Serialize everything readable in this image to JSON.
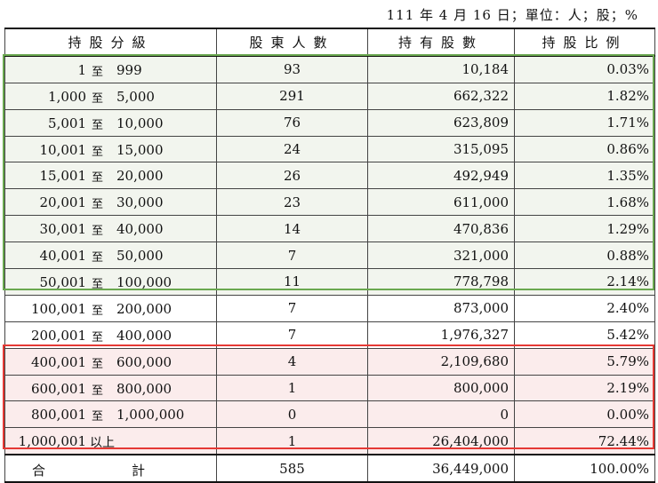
{
  "caption": "111 年 4 月 16 日；單位：人；股；%",
  "headers": [
    "持股分級",
    "股東人數",
    "持有股數",
    "持股比例"
  ],
  "rows": [
    {
      "lo": "1",
      "sep": "至",
      "hi": "999",
      "count": "93",
      "shares": "10,184",
      "pct": "0.03%"
    },
    {
      "lo": "1,000",
      "sep": "至",
      "hi": "5,000",
      "count": "291",
      "shares": "662,322",
      "pct": "1.82%"
    },
    {
      "lo": "5,001",
      "sep": "至",
      "hi": "10,000",
      "count": "76",
      "shares": "623,809",
      "pct": "1.71%"
    },
    {
      "lo": "10,001",
      "sep": "至",
      "hi": "15,000",
      "count": "24",
      "shares": "315,095",
      "pct": "0.86%"
    },
    {
      "lo": "15,001",
      "sep": "至",
      "hi": "20,000",
      "count": "26",
      "shares": "492,949",
      "pct": "1.35%"
    },
    {
      "lo": "20,001",
      "sep": "至",
      "hi": "30,000",
      "count": "23",
      "shares": "611,000",
      "pct": "1.68%"
    },
    {
      "lo": "30,001",
      "sep": "至",
      "hi": "40,000",
      "count": "14",
      "shares": "470,836",
      "pct": "1.29%"
    },
    {
      "lo": "40,001",
      "sep": "至",
      "hi": "50,000",
      "count": "7",
      "shares": "321,000",
      "pct": "0.88%"
    },
    {
      "lo": "50,001",
      "sep": "至",
      "hi": "100,000",
      "count": "11",
      "shares": "778,798",
      "pct": "2.14%"
    },
    {
      "lo": "100,001",
      "sep": "至",
      "hi": "200,000",
      "count": "7",
      "shares": "873,000",
      "pct": "2.40%"
    },
    {
      "lo": "200,001",
      "sep": "至",
      "hi": "400,000",
      "count": "7",
      "shares": "1,976,327",
      "pct": "5.42%"
    },
    {
      "lo": "400,001",
      "sep": "至",
      "hi": "600,000",
      "count": "4",
      "shares": "2,109,680",
      "pct": "5.79%"
    },
    {
      "lo": "600,001",
      "sep": "至",
      "hi": "800,000",
      "count": "1",
      "shares": "800,000",
      "pct": "2.19%"
    },
    {
      "lo": "800,001",
      "sep": "至",
      "hi": "1,000,000",
      "count": "0",
      "shares": "0",
      "pct": "0.00%"
    },
    {
      "lo": "1,000,001",
      "sep": "以上",
      "hi": "",
      "count": "1",
      "shares": "26,404,000",
      "pct": "72.44%"
    }
  ],
  "total": {
    "label_a": "合",
    "label_b": "計",
    "count": "585",
    "shares": "36,449,000",
    "pct": "100.00%"
  },
  "highlights": {
    "green_border": "#6aa84f",
    "green_fill": "#f2f5ee",
    "red_border": "#e53935",
    "red_fill": "#fbecec"
  }
}
